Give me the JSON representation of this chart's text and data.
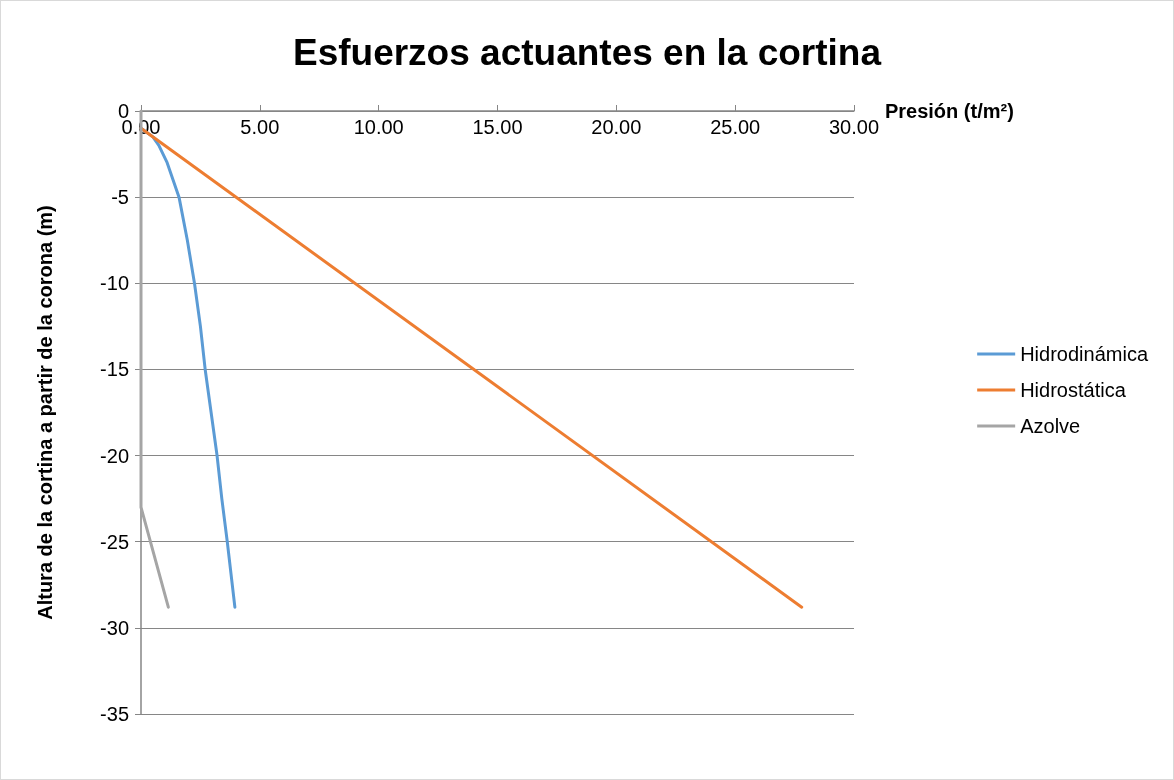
{
  "chart_data": {
    "type": "line",
    "title": "Esfuerzos actuantes en la cortina",
    "xlabel": "Presión (t/m²)",
    "ylabel": "Altura de la cortina a partir de la corona (m)",
    "xlim": [
      0,
      30
    ],
    "xticks": [
      {
        "value": 0,
        "label": "0.00"
      },
      {
        "value": 5,
        "label": "5.00"
      },
      {
        "value": 10,
        "label": "10.00"
      },
      {
        "value": 15,
        "label": "15.00"
      },
      {
        "value": 20,
        "label": "20.00"
      },
      {
        "value": 25,
        "label": "25.00"
      },
      {
        "value": 30,
        "label": "30.00"
      }
    ],
    "ylim": [
      -35,
      0
    ],
    "yticks": [
      0,
      -5,
      -10,
      -15,
      -20,
      -25,
      -30,
      -35
    ],
    "grid": "y",
    "legend": "right",
    "marker": "none",
    "line_style": "solid",
    "series": [
      {
        "name": "Hidrodinámica",
        "color": "#5b9bd5",
        "x": [
          0,
          0.5,
          0.75,
          1.1,
          1.6,
          1.95,
          2.25,
          2.5,
          2.7,
          2.95,
          3.2,
          3.4,
          3.63,
          3.95
        ],
        "values": [
          -1,
          -1.5,
          -2,
          -3,
          -5,
          -7.5,
          -10,
          -12.5,
          -15,
          -17.5,
          -20,
          -22.5,
          -25,
          -28.8
        ]
      },
      {
        "name": "Hidrostática",
        "color": "#ed7d31",
        "x": [
          0,
          27.8
        ],
        "values": [
          -1,
          -28.8
        ]
      },
      {
        "name": "Azolve",
        "color": "#a5a5a5",
        "x": [
          0,
          0,
          1.15
        ],
        "values": [
          0,
          -23,
          -28.8
        ]
      }
    ]
  }
}
